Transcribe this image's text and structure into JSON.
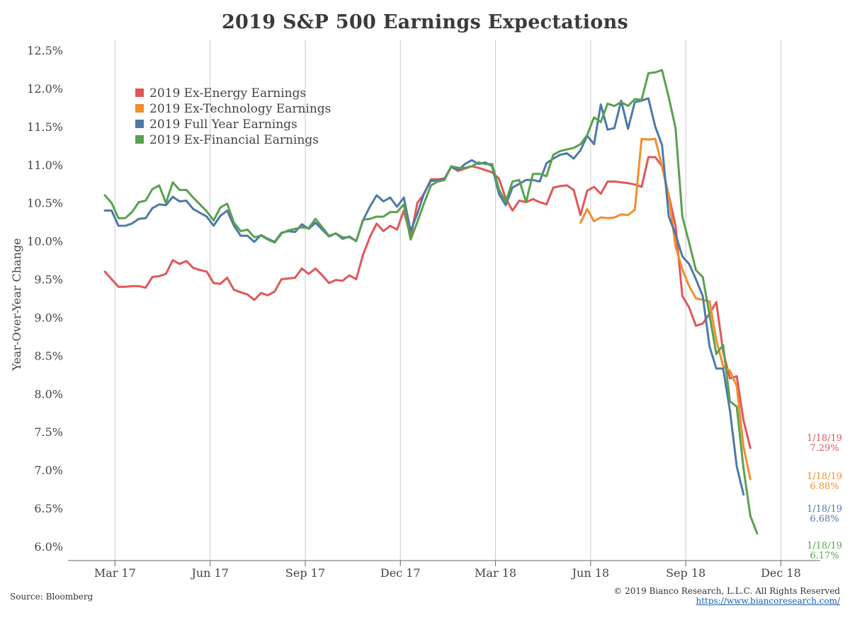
{
  "source": "Source: Bloomberg",
  "copyright": "© 2019 Bianco Research, L.L.C. All Rights Reserved",
  "website": "https://www.biancoresearch.com/",
  "chart_data": {
    "type": "line",
    "title": "2019 S&P 500 Earnings Expectations",
    "ylabel": "Year-Over-Year Change",
    "xlabel": "",
    "ylim": [
      6.0,
      12.5
    ],
    "y_ticks": [
      "12.5%",
      "12.0%",
      "11.5%",
      "11.0%",
      "10.5%",
      "10.0%",
      "9.5%",
      "9.0%",
      "8.5%",
      "8.0%",
      "7.5%",
      "7.0%",
      "6.5%",
      "6.0%"
    ],
    "x_tick_labels": [
      "Mar 17",
      "Jun 17",
      "Sep 17",
      "Dec 17",
      "Mar 18",
      "Jun 18",
      "Sep 18",
      "Dec 18"
    ],
    "x_tick_weeks": [
      1.5,
      15.5,
      29.5,
      43.5,
      57.5,
      71.5,
      85.5,
      99.5
    ],
    "x_max_week": 103,
    "vertical_grid": true,
    "legend_position": "top-left",
    "series": [
      {
        "name": "2019 Ex-Energy Earnings",
        "color": "#e05759",
        "start_week": 0,
        "values": [
          9.6,
          9.5,
          9.4,
          9.4,
          9.41,
          9.41,
          9.39,
          9.53,
          9.54,
          9.57,
          9.75,
          9.7,
          9.74,
          9.65,
          9.62,
          9.6,
          9.45,
          9.44,
          9.52,
          9.36,
          9.33,
          9.3,
          9.23,
          9.32,
          9.29,
          9.34,
          9.5,
          9.51,
          9.52,
          9.64,
          9.57,
          9.64,
          9.55,
          9.45,
          9.49,
          9.48,
          9.55,
          9.5,
          9.82,
          10.05,
          10.23,
          10.13,
          10.2,
          10.15,
          10.4,
          10.05,
          10.5,
          10.62,
          10.81,
          10.81,
          10.82,
          10.97,
          10.92,
          10.95,
          10.98,
          10.96,
          10.93,
          10.9,
          10.82,
          10.56,
          10.4,
          10.53,
          10.51,
          10.55,
          10.51,
          10.48,
          10.7,
          10.72,
          10.73,
          10.67,
          10.34,
          10.66,
          10.71,
          10.62,
          10.78,
          10.78,
          10.77,
          10.76,
          10.74,
          10.71,
          11.1,
          11.1,
          10.98,
          10.6,
          10.2,
          9.28,
          9.13,
          8.89,
          8.92,
          9.05,
          9.2,
          8.55,
          8.2,
          8.23,
          7.65,
          7.29
        ]
      },
      {
        "name": "2019 Ex-Technology Earnings",
        "color": "#f28e2b",
        "start_week": 70,
        "values": [
          10.24,
          10.42,
          10.26,
          10.31,
          10.3,
          10.31,
          10.35,
          10.34,
          10.41,
          11.34,
          11.33,
          11.34,
          10.98,
          10.59,
          9.93,
          9.63,
          9.41,
          9.25,
          9.23,
          9.21,
          8.7,
          8.36,
          8.3,
          8.1,
          7.3,
          6.88
        ]
      },
      {
        "name": "2019 Full Year Earnings",
        "color": "#4e79a7",
        "start_week": 0,
        "values": [
          10.4,
          10.4,
          10.2,
          10.2,
          10.23,
          10.29,
          10.3,
          10.43,
          10.48,
          10.47,
          10.58,
          10.52,
          10.53,
          10.42,
          10.37,
          10.32,
          10.2,
          10.33,
          10.4,
          10.2,
          10.07,
          10.07,
          9.99,
          10.08,
          10.03,
          9.99,
          10.11,
          10.13,
          10.12,
          10.22,
          10.16,
          10.24,
          10.15,
          10.06,
          10.1,
          10.03,
          10.06,
          10.0,
          10.27,
          10.45,
          10.6,
          10.52,
          10.57,
          10.45,
          10.57,
          10.13,
          10.36,
          10.63,
          10.79,
          10.79,
          10.82,
          10.98,
          10.93,
          11.01,
          11.06,
          11.01,
          11.03,
          10.98,
          10.62,
          10.47,
          10.7,
          10.75,
          10.8,
          10.8,
          10.78,
          11.02,
          11.08,
          11.13,
          11.15,
          11.08,
          11.19,
          11.38,
          11.27,
          11.79,
          11.46,
          11.48,
          11.84,
          11.47,
          11.82,
          11.84,
          11.87,
          11.5,
          11.26,
          10.32,
          10.09,
          9.8,
          9.7,
          9.5,
          9.28,
          8.62,
          8.33,
          8.33,
          7.78,
          7.05,
          6.68
        ]
      },
      {
        "name": "2019 Ex-Financial Earnings",
        "color": "#59a14f",
        "start_week": 0,
        "values": [
          10.6,
          10.5,
          10.3,
          10.3,
          10.38,
          10.51,
          10.53,
          10.68,
          10.73,
          10.5,
          10.77,
          10.67,
          10.67,
          10.57,
          10.48,
          10.39,
          10.27,
          10.44,
          10.49,
          10.24,
          10.13,
          10.15,
          10.05,
          10.07,
          10.02,
          9.98,
          10.1,
          10.14,
          10.16,
          10.18,
          10.17,
          10.29,
          10.18,
          10.07,
          10.1,
          10.05,
          10.05,
          10.0,
          10.28,
          10.29,
          10.32,
          10.32,
          10.38,
          10.38,
          10.48,
          10.02,
          10.25,
          10.5,
          10.73,
          10.78,
          10.8,
          10.98,
          10.96,
          10.96,
          10.98,
          11.03,
          11.01,
          11.01,
          10.68,
          10.51,
          10.78,
          10.8,
          10.51,
          10.88,
          10.88,
          10.85,
          11.13,
          11.18,
          11.2,
          11.22,
          11.27,
          11.39,
          11.62,
          11.56,
          11.8,
          11.77,
          11.82,
          11.77,
          11.86,
          11.85,
          12.2,
          12.21,
          12.24,
          11.88,
          11.48,
          10.32,
          9.98,
          9.62,
          9.53,
          9.03,
          8.52,
          8.64,
          7.9,
          7.83,
          7.02,
          6.4,
          6.17
        ]
      }
    ],
    "end_labels": [
      {
        "series": "2019 Ex-Energy Earnings",
        "date": "1/18/19",
        "value": "7.29%"
      },
      {
        "series": "2019 Ex-Technology Earnings",
        "date": "1/18/19",
        "value": "6.88%"
      },
      {
        "series": "2019 Full Year Earnings",
        "date": "1/18/19",
        "value": "6.68%"
      },
      {
        "series": "2019 Ex-Financial Earnings",
        "date": "1/18/19",
        "value": "6.17%"
      }
    ]
  }
}
